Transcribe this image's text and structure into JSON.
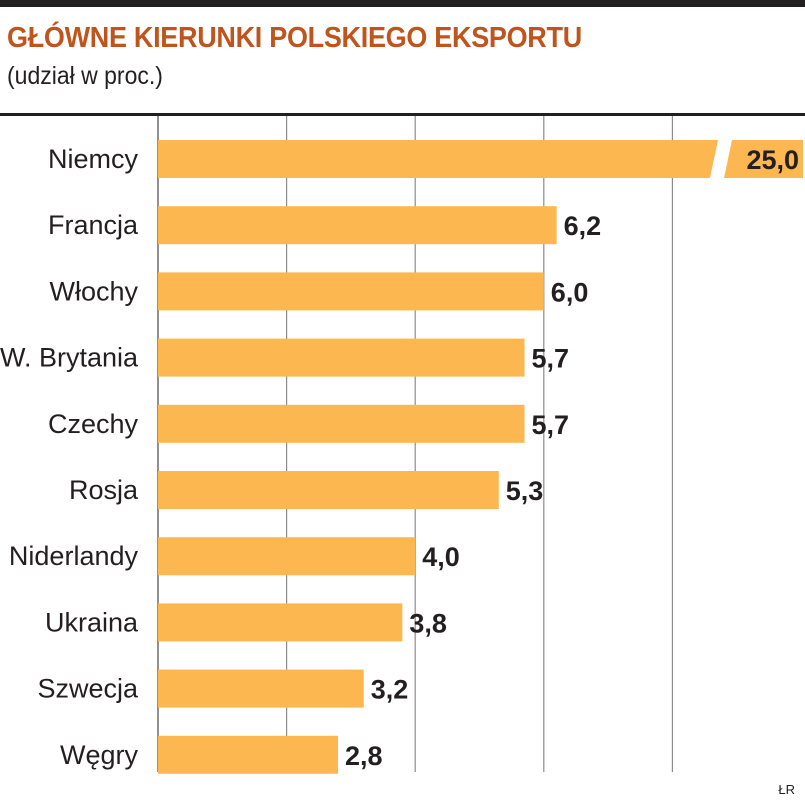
{
  "colors": {
    "bar": "#fdb750",
    "title": "#c0541c",
    "text": "#231f20",
    "grid": "#8c8c8c"
  },
  "credit": "ŁR",
  "chart_data": {
    "type": "bar",
    "orientation": "horizontal",
    "title": "GŁÓWNE KIERUNKI POLSKIEGO EKSPORTU",
    "subtitle": "(udział w proc.)",
    "categories": [
      "Niemcy",
      "Francja",
      "Włochy",
      "W. Brytania",
      "Czechy",
      "Rosja",
      "Niderlandy",
      "Ukraina",
      "Szwecja",
      "Węgry"
    ],
    "values": [
      25.0,
      6.2,
      6.0,
      5.7,
      5.7,
      5.3,
      4.0,
      3.8,
      3.2,
      2.8
    ],
    "value_labels": [
      "25,0",
      "6,2",
      "6,0",
      "5,7",
      "5,7",
      "5,3",
      "4,0",
      "3,8",
      "3,2",
      "2,8"
    ],
    "axis_break": {
      "category": "Niemcy"
    },
    "grid": true,
    "legend": "none"
  }
}
